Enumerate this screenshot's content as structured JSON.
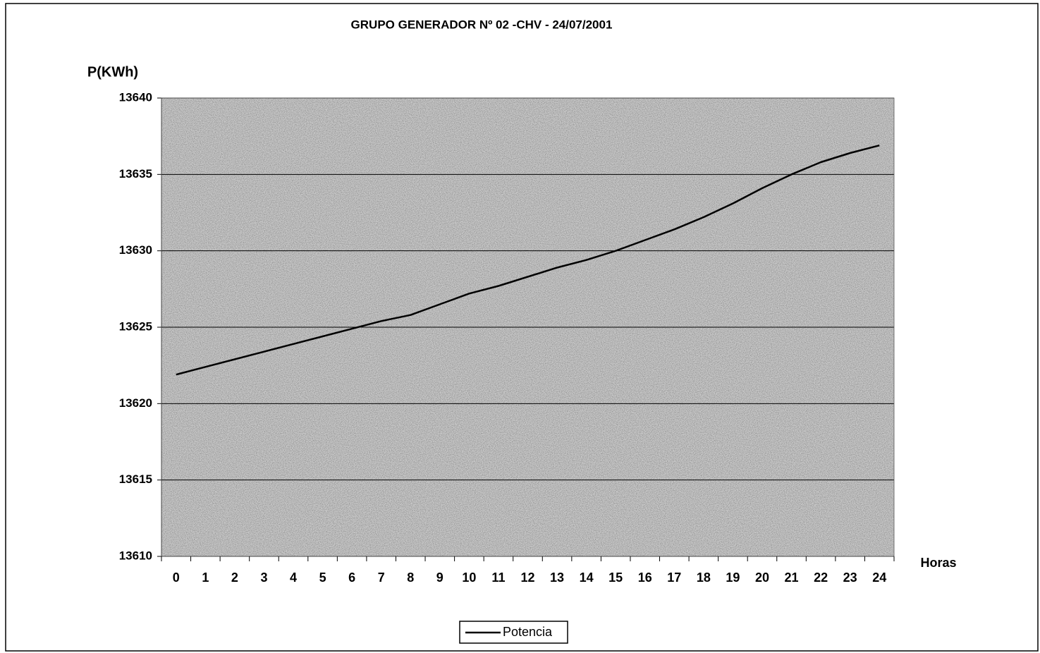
{
  "chart_data": {
    "type": "line",
    "title": "GRUPO GENERADOR Nº 02 -CHV - 24/07/2001",
    "y_label": "P(KWh)",
    "x_label": "Horas",
    "categories": [
      "0",
      "1",
      "2",
      "3",
      "4",
      "5",
      "6",
      "7",
      "8",
      "9",
      "10",
      "11",
      "12",
      "13",
      "14",
      "15",
      "16",
      "17",
      "18",
      "19",
      "20",
      "21",
      "22",
      "23",
      "24"
    ],
    "series": [
      {
        "name": "Potencia",
        "color": "#000000",
        "values": [
          13621.9,
          13622.4,
          13622.9,
          13623.4,
          13623.9,
          13624.4,
          13624.9,
          13625.4,
          13625.8,
          13626.5,
          13627.2,
          13627.7,
          13628.3,
          13628.9,
          13629.4,
          13630.0,
          13630.7,
          13631.4,
          13632.2,
          13633.1,
          13634.1,
          13635.0,
          13635.8,
          13636.4,
          13636.9
        ]
      }
    ],
    "ylim": [
      13610,
      13640
    ],
    "yticks": [
      13610,
      13615,
      13620,
      13625,
      13630,
      13635,
      13640
    ],
    "grid": true,
    "legend": "bottom"
  }
}
